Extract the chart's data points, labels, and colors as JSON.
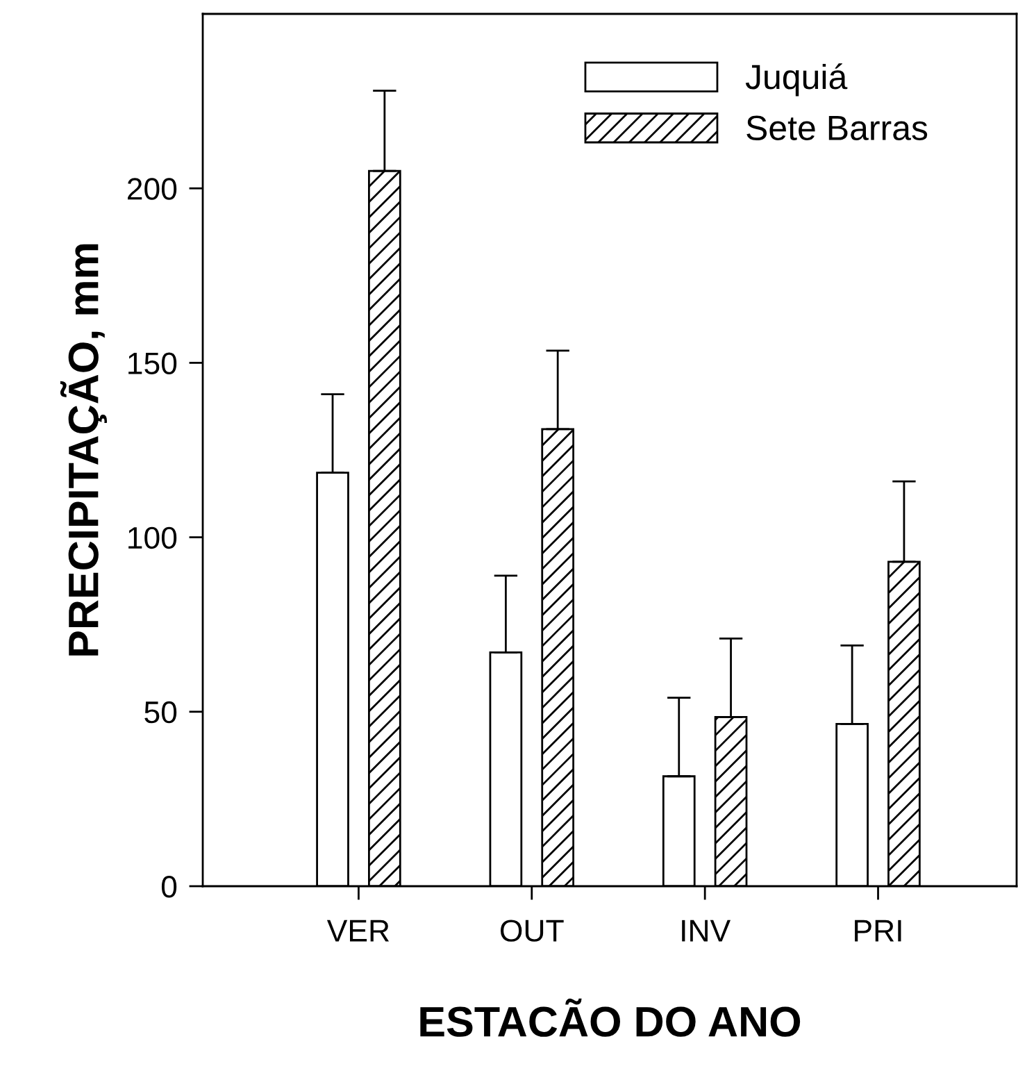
{
  "chart_data": {
    "type": "bar",
    "xlabel": "ESTACÃO DO ANO",
    "ylabel": "PRECIPITAÇÃO, mm",
    "categories": [
      "VER",
      "OUT",
      "INV",
      "PRI"
    ],
    "series": [
      {
        "name": "Juquiá",
        "color": "#ffffff",
        "values": [
          118.5,
          67,
          31.5,
          46.5
        ],
        "errors": [
          [
            118.5,
            141
          ],
          [
            67,
            89
          ],
          [
            31.5,
            54
          ],
          [
            46.5,
            69
          ]
        ]
      },
      {
        "name": "Sete Barras",
        "color": "#000000",
        "values": [
          205,
          131,
          48.5,
          93
        ],
        "errors": [
          [
            205,
            228
          ],
          [
            131,
            153.5
          ],
          [
            48.5,
            71
          ],
          [
            93,
            116
          ]
        ]
      }
    ],
    "ylim": [
      0,
      250
    ],
    "yticks": [
      0,
      50,
      100,
      150,
      200
    ],
    "grid": false,
    "legend": "top right"
  }
}
